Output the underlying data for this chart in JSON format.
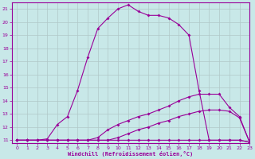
{
  "xlabel": "Windchill (Refroidissement éolien,°C)",
  "xlim": [
    -0.5,
    23
  ],
  "ylim": [
    10.8,
    21.5
  ],
  "yticks": [
    11,
    12,
    13,
    14,
    15,
    16,
    17,
    18,
    19,
    20,
    21
  ],
  "xticks": [
    0,
    1,
    2,
    3,
    4,
    5,
    6,
    7,
    8,
    9,
    10,
    11,
    12,
    13,
    14,
    15,
    16,
    17,
    18,
    19,
    20,
    21,
    22,
    23
  ],
  "bg_color": "#c8e8e8",
  "line_color": "#990099",
  "grid_color": "#b0c8c8",
  "series": [
    {
      "x": [
        0,
        1,
        2,
        3,
        4,
        5,
        6,
        7,
        8,
        9,
        10,
        11,
        12,
        13,
        14,
        15,
        16,
        17,
        18,
        19,
        20,
        21,
        22,
        23
      ],
      "y": [
        11,
        11,
        11,
        11,
        11,
        11,
        11,
        11,
        11,
        11,
        11,
        11,
        11,
        11,
        11,
        11,
        11,
        11,
        11,
        11,
        11,
        11,
        11,
        10.85
      ]
    },
    {
      "x": [
        0,
        1,
        2,
        3,
        4,
        5,
        6,
        7,
        8,
        9,
        10,
        11,
        12,
        13,
        14,
        15,
        16,
        17,
        18,
        19,
        20,
        21,
        22,
        23
      ],
      "y": [
        11,
        11,
        11,
        11,
        11,
        11,
        11,
        11,
        11,
        11,
        11.2,
        11.5,
        11.8,
        12.0,
        12.3,
        12.5,
        12.8,
        13.0,
        13.2,
        13.3,
        13.3,
        13.2,
        12.7,
        10.85
      ]
    },
    {
      "x": [
        0,
        1,
        2,
        3,
        4,
        5,
        6,
        7,
        8,
        9,
        10,
        11,
        12,
        13,
        14,
        15,
        16,
        17,
        18,
        19,
        20,
        21,
        22,
        23
      ],
      "y": [
        11,
        11,
        11,
        11,
        11,
        11,
        11,
        11,
        11.2,
        11.8,
        12.2,
        12.5,
        12.8,
        13.0,
        13.3,
        13.6,
        14.0,
        14.3,
        14.5,
        14.5,
        14.5,
        13.5,
        12.8,
        10.85
      ]
    },
    {
      "x": [
        0,
        1,
        2,
        3,
        4,
        5,
        6,
        7,
        8,
        9,
        10,
        11,
        12,
        13,
        14,
        15,
        16,
        17,
        18,
        19,
        20,
        21,
        22,
        23
      ],
      "y": [
        11,
        11,
        11,
        11.1,
        12.2,
        12.8,
        14.8,
        17.3,
        19.5,
        20.3,
        21.0,
        21.3,
        20.8,
        20.5,
        20.5,
        20.3,
        19.8,
        19.0,
        14.8,
        11,
        11,
        11,
        11,
        10.85
      ]
    }
  ]
}
